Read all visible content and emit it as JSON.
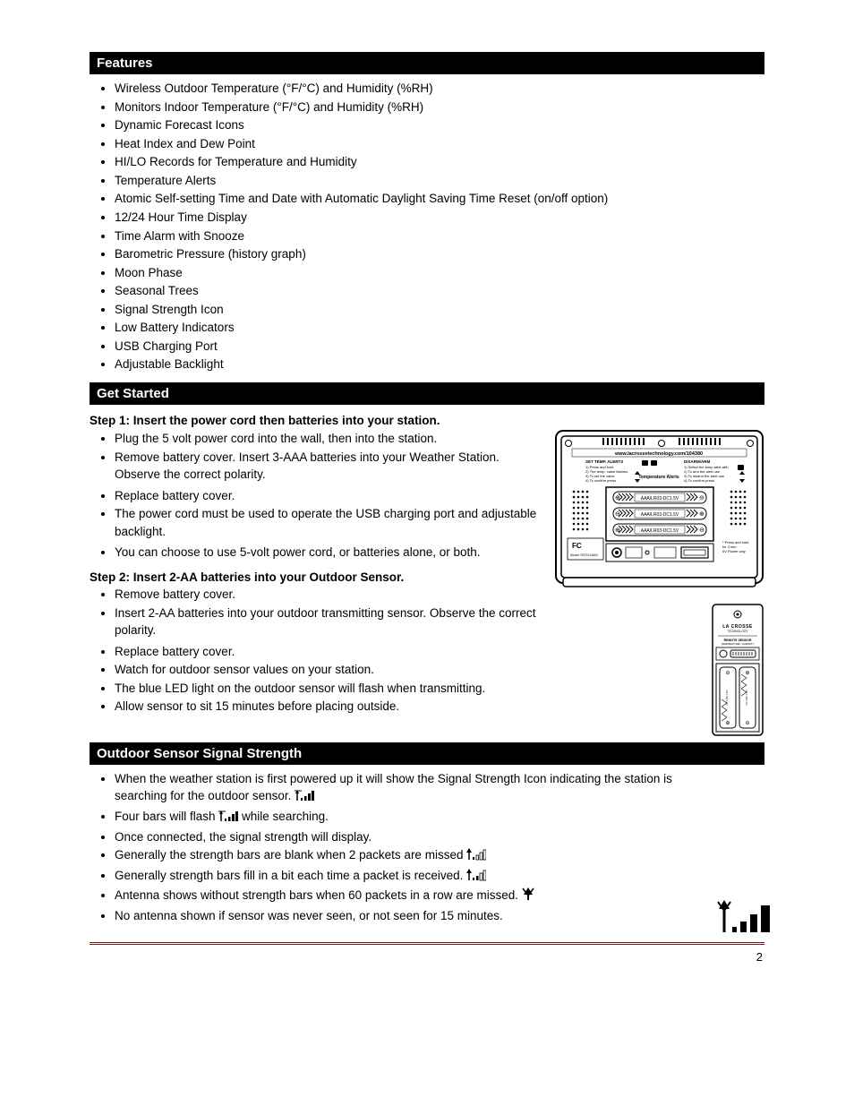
{
  "page": {
    "number": "2"
  },
  "sections": {
    "features": {
      "title": "Features",
      "items": [
        "Wireless Outdoor Temperature (°F/°C) and Humidity (%RH)",
        "Monitors Indoor Temperature (°F/°C) and Humidity (%RH)",
        "Dynamic Forecast Icons",
        "Heat Index and Dew Point",
        "HI/LO Records for Temperature and Humidity",
        "Temperature Alerts",
        "Atomic Self-setting Time and Date with Automatic Daylight Saving Time Reset (on/off option)",
        "12/24 Hour Time Display",
        "Time Alarm with Snooze",
        "Barometric Pressure (history graph)",
        "Moon Phase",
        "Seasonal Trees",
        "Signal Strength Icon",
        "Low Battery Indicators",
        "USB Charging Port",
        "Adjustable Backlight"
      ]
    },
    "power": {
      "title": "Get Started",
      "station_title": "Step 1: Insert the power cord then batteries into your station.",
      "station_items_a": [
        "Plug the 5 volt power cord into the wall, then into the station.",
        "Remove battery cover. Insert 3-AAA batteries into your Weather Station. Observe the correct polarity."
      ],
      "station_items_b": [
        "Replace battery cover.",
        "The power cord must be used to operate the USB charging port and adjustable backlight."
      ],
      "station_items_c": [
        "You can choose to use 5-volt power cord, or batteries alone, or both."
      ],
      "sensor_title": "Step 2: Insert 2-AA batteries into your Outdoor Sensor.",
      "sensor_items_a": [
        "Remove battery cover.",
        "Insert 2-AA batteries into your outdoor transmitting sensor. Observe the correct polarity."
      ],
      "sensor_items_b": [
        "Replace battery cover.",
        "Watch for outdoor sensor values on your station.",
        "The blue LED light on the outdoor sensor will flash when transmitting.",
        "Allow sensor to sit 15 minutes before placing outside."
      ]
    },
    "signal": {
      "title": "Outdoor Sensor Signal Strength",
      "items": [
        "When the weather station is first powered up it will show the Signal Strength Icon indicating the station is searching for the outdoor sensor.  @@ICON_SIGNAL_SMALL@@",
        "Four bars will flash  @@ICON_SIGNAL_SMALL@@  while searching.",
        "Once connected, the signal strength will display.",
        "Generally the strength bars are blank when 2 packets are missed @@ICON_SIGNAL_WEAK@@",
        "Generally strength bars fill in a bit each time a packet is received. @@ICON_SIGNAL_MED@@",
        "Antenna shows without strength bars when 60 packets in a row are missed.  @@ICON_ANTENNA@@",
        "No antenna shown if sensor was never seen, or not seen for 15 minutes."
      ]
    }
  },
  "figures": {
    "station_back": {
      "url_text": "www.lacrossetechnology.com/104380",
      "left_block_title": "SET TEMP. ALERTS",
      "left_block_lines": [
        "1) Press and hold",
        "2) The temp. value flashes.",
        "3) To set the value",
        "4) To confirm press"
      ],
      "center_text": "Temperature Alerts",
      "right_block_title": "DISARM/ARM",
      "right_block_lines": [
        "1) Select the temp alert with",
        "2) To arm the alert use",
        "3) To disarm the alert use",
        "4) To confirm press"
      ],
      "battery_labels": [
        "AAA/LR03-DC1.5V",
        "AAA/LR03-DC1.5V",
        "AAA/LR03-DC1.5V"
      ],
      "fcc_text": "FC",
      "model_text": "Model: RSTN-NAV2",
      "side_note": "* Press and hold\nfor 3 sec.\n5V Power only"
    },
    "sensor_back": {
      "brand": "LA CROSSE",
      "sub": "TECHNOLOGY",
      "label": "REMOTE SENSOR",
      "range": "TEMPERATURE / HUMIDITY"
    }
  },
  "colors": {
    "header_bg": "#000000",
    "header_fg": "#ffffff",
    "rule": "#7a1a1a",
    "text": "#000000"
  }
}
